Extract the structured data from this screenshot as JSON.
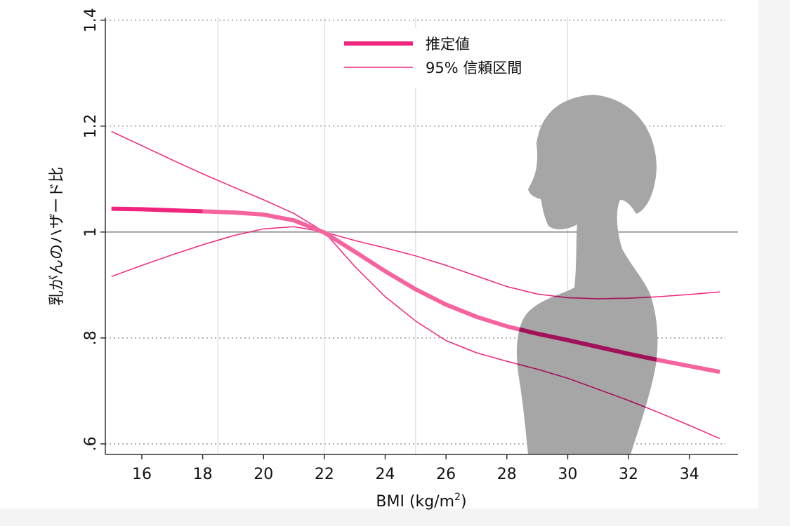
{
  "chart_data": {
    "type": "line",
    "xlabel": "BMI (kg/m",
    "xlabel_sup": "2",
    "xlabel_end": ")",
    "ylabel": "乳がんのハザード比",
    "xlim": [
      14.8,
      35.6
    ],
    "ylim": [
      0.58,
      1.405
    ],
    "x_ticks": [
      16,
      18,
      20,
      22,
      24,
      26,
      28,
      30,
      32,
      34
    ],
    "x_tick_labels": [
      "16",
      "18",
      "20",
      "22",
      "24",
      "26",
      "28",
      "30",
      "32",
      "34"
    ],
    "y_ticks": [
      0.6,
      0.8,
      1.0,
      1.2,
      1.4
    ],
    "y_tick_labels": [
      ".6",
      ".8",
      "1",
      "1.2",
      "1.4"
    ],
    "vertical_gridlines": [
      18.5,
      22,
      25,
      30
    ],
    "reference_line": 1.0,
    "grid": "horizontal dotted at y ticks, vertical light lines at x = 18.5, 22, 25, 30",
    "legend_position": "top-center",
    "colors": {
      "estimate": "#f0257d",
      "estimate_light": "#f5649f",
      "ci": "#f0257d",
      "silhouette": "#a6a6a6",
      "overlap": "#a0125a"
    },
    "series": [
      {
        "name": "推定値",
        "style": "thick",
        "x": [
          15,
          16,
          17,
          18,
          19,
          20,
          21,
          22,
          23,
          24,
          25,
          26,
          27,
          28,
          29,
          30,
          31,
          32,
          33,
          34,
          35
        ],
        "y": [
          1.044,
          1.043,
          1.041,
          1.039,
          1.037,
          1.033,
          1.022,
          0.999,
          0.963,
          0.926,
          0.892,
          0.863,
          0.84,
          0.822,
          0.808,
          0.796,
          0.783,
          0.77,
          0.758,
          0.747,
          0.736
        ]
      },
      {
        "name": "95% 信頼区間",
        "style": "thin",
        "segments": [
          {
            "x": [
              15,
              16,
              17,
              18,
              19,
              20,
              21,
              22,
              23,
              24,
              25,
              26,
              27,
              28,
              29,
              30,
              31,
              32,
              33,
              34,
              35
            ],
            "y": [
              1.19,
              1.163,
              1.136,
              1.11,
              1.085,
              1.061,
              1.035,
              1.0,
              0.935,
              0.878,
              0.832,
              0.795,
              0.772,
              0.756,
              0.741,
              0.724,
              0.703,
              0.682,
              0.659,
              0.635,
              0.61
            ]
          },
          {
            "x": [
              15,
              16,
              17,
              18,
              19,
              20,
              21,
              22,
              23,
              24,
              25,
              26,
              27,
              28,
              29,
              30,
              31,
              32,
              33,
              34,
              35
            ],
            "y": [
              0.916,
              0.937,
              0.957,
              0.976,
              0.993,
              1.006,
              1.01,
              1.0,
              0.984,
              0.97,
              0.955,
              0.937,
              0.917,
              0.897,
              0.883,
              0.876,
              0.874,
              0.875,
              0.878,
              0.882,
              0.887
            ]
          }
        ]
      }
    ]
  }
}
